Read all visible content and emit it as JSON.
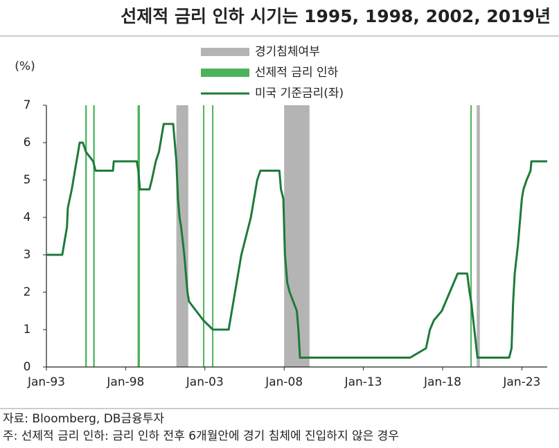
{
  "chart_data": {
    "type": "line",
    "title": "선제적 금리 인하 시기는 1995, 1998, 2002, 2019년",
    "y_label": "(%)",
    "source": "자료: Bloomberg, DB금융투자",
    "note": "주: 선제적 금리 인하: 금리 인하 전후 6개월안에 경기 침체에 진입하지 않은 경우",
    "xlim": [
      1993,
      2024.6
    ],
    "xticks": [
      {
        "value": 1993,
        "label": "Jan-93"
      },
      {
        "value": 1998,
        "label": "Jan-98"
      },
      {
        "value": 2003,
        "label": "Jan-03"
      },
      {
        "value": 2008,
        "label": "Jan-08"
      },
      {
        "value": 2013,
        "label": "Jan-13"
      },
      {
        "value": 2018,
        "label": "Jan-18"
      },
      {
        "value": 2023,
        "label": "Jan-23"
      }
    ],
    "ylim": [
      0,
      7
    ],
    "yticks": [
      0,
      1,
      2,
      3,
      4,
      5,
      6,
      7
    ],
    "bands": [
      {
        "name": "경기침체여부",
        "color": "#b4b4b4",
        "ranges": [
          [
            2001.2,
            2001.95
          ],
          [
            2008.0,
            2009.6
          ],
          [
            2020.15,
            2020.35
          ]
        ]
      },
      {
        "name": "선제적 금리 인하",
        "color": "#4db35a",
        "ranges": [
          [
            1995.45,
            1995.55
          ],
          [
            1995.95,
            1996.05
          ],
          [
            1998.75,
            1998.9
          ],
          [
            2002.88,
            2002.95
          ],
          [
            2003.45,
            2003.52
          ],
          [
            2019.75,
            2019.82
          ]
        ]
      }
    ],
    "series": [
      {
        "name": "미국 기준금리(좌)",
        "color": "#1d7a3a",
        "x": [
          1993.0,
          1994.0,
          1994.1,
          1994.3,
          1994.35,
          1994.6,
          1994.7,
          1994.9,
          1995.1,
          1995.3,
          1995.5,
          1995.95,
          1996.1,
          1997.2,
          1997.25,
          1998.7,
          1998.8,
          1998.9,
          1999.5,
          1999.65,
          1999.9,
          2000.1,
          2000.2,
          2000.4,
          2001.0,
          2001.1,
          2001.2,
          2001.3,
          2001.4,
          2001.5,
          2001.7,
          2001.8,
          2001.9,
          2002.0,
          2002.9,
          2003.5,
          2004.5,
          2004.7,
          2004.9,
          2005.1,
          2005.3,
          2005.6,
          2005.9,
          2006.1,
          2006.3,
          2006.5,
          2007.7,
          2007.8,
          2007.95,
          2008.05,
          2008.2,
          2008.35,
          2008.8,
          2008.9,
          2009.0,
          2015.95,
          2016.95,
          2017.2,
          2017.45,
          2017.95,
          2018.2,
          2018.45,
          2018.7,
          2018.95,
          2019.55,
          2019.7,
          2019.8,
          2020.2,
          2022.2,
          2022.35,
          2022.45,
          2022.55,
          2022.75,
          2022.9,
          2023.0,
          2023.1,
          2023.3,
          2023.55,
          2023.6,
          2024.6
        ],
        "values": [
          3,
          3,
          3.25,
          3.75,
          4.25,
          4.75,
          5.0,
          5.5,
          6.0,
          6.0,
          5.75,
          5.5,
          5.25,
          5.25,
          5.5,
          5.5,
          5.25,
          4.75,
          4.75,
          5.0,
          5.5,
          5.75,
          6.0,
          6.5,
          6.5,
          6.0,
          5.5,
          4.5,
          4.0,
          3.75,
          3.0,
          2.5,
          2.0,
          1.75,
          1.25,
          1.0,
          1.0,
          1.5,
          2.0,
          2.5,
          3.0,
          3.5,
          4.0,
          4.5,
          5.0,
          5.25,
          5.25,
          4.75,
          4.5,
          3.0,
          2.25,
          2.0,
          1.5,
          1.0,
          0.25,
          0.25,
          0.5,
          1.0,
          1.25,
          1.5,
          1.75,
          2.0,
          2.25,
          2.5,
          2.5,
          2.0,
          1.75,
          0.25,
          0.25,
          0.5,
          1.75,
          2.5,
          3.25,
          4.0,
          4.5,
          4.75,
          5.0,
          5.25,
          5.5,
          5.5
        ]
      }
    ],
    "grid": false
  }
}
